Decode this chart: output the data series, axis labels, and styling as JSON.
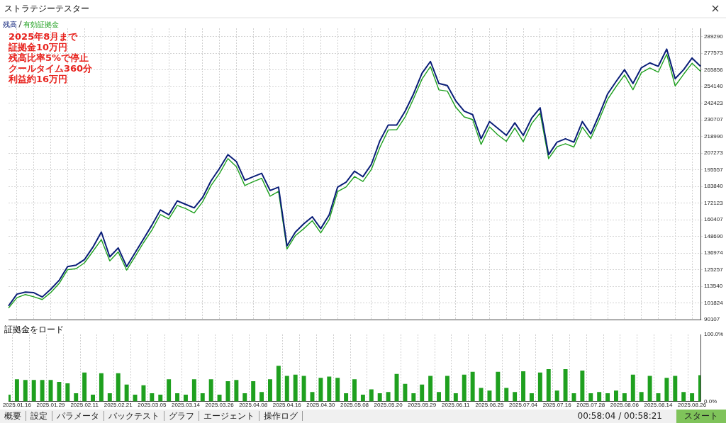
{
  "chart_data": [
    {
      "type": "line",
      "annotations": [
        "2025年8月まで",
        "証拠金10万円",
        "残高比率5%で停止",
        "クールタイム360分",
        "利益約16万円"
      ],
      "categories": [
        null,
        "2025.01.16",
        null,
        null,
        null,
        "2025.01.29",
        null,
        null,
        null,
        "2025.02.11",
        null,
        null,
        null,
        "2025.02.21",
        null,
        null,
        null,
        "2025.03.05",
        null,
        null,
        null,
        "2025.03.14",
        null,
        null,
        null,
        "2025.03.26",
        null,
        null,
        null,
        "2025.04.08",
        null,
        null,
        null,
        "2025.04.16",
        null,
        null,
        null,
        "2025.04.30",
        null,
        null,
        null,
        "2025.05.08",
        null,
        null,
        null,
        "2025.05.20",
        null,
        null,
        null,
        "2025.05.29",
        null,
        null,
        null,
        "2025.06.11",
        null,
        null,
        null,
        "2025.06.25",
        null,
        null,
        null,
        "2025.07.04",
        null,
        null,
        null,
        "2025.07.16",
        null,
        null,
        null,
        "2025.07.28",
        null,
        null,
        null,
        "2025.08.06",
        null,
        null,
        null,
        "2025.08.14",
        null,
        null,
        null,
        "2025.08.26",
        null
      ],
      "series": [
        {
          "name": "残高",
          "color": "#0a1e78",
          "values": [
            99800,
            108100,
            109500,
            109100,
            106100,
            111500,
            117800,
            127500,
            128500,
            132400,
            141100,
            151800,
            134300,
            140600,
            127500,
            137200,
            146900,
            156700,
            167300,
            163900,
            173700,
            171200,
            168800,
            176100,
            187800,
            196500,
            206200,
            201400,
            188200,
            190700,
            193100,
            181000,
            183400,
            142100,
            151800,
            157600,
            162500,
            154200,
            163900,
            183400,
            186800,
            194600,
            190700,
            199400,
            215900,
            227100,
            227100,
            236800,
            249000,
            263500,
            271800,
            256300,
            254800,
            244100,
            236800,
            234400,
            217400,
            229500,
            224700,
            219800,
            228600,
            219800,
            232000,
            239200,
            206200,
            215000,
            217400,
            215000,
            229500,
            220800,
            234400,
            249000,
            257700,
            266000,
            256300,
            267400,
            270800,
            268400,
            280500,
            259700,
            266000,
            274200,
            268400
          ]
        },
        {
          "name": "有効証拠金",
          "color": "#1fa01f",
          "values": [
            98300,
            105600,
            107800,
            106200,
            104300,
            109200,
            115600,
            125300,
            126000,
            130100,
            138200,
            146500,
            131500,
            137800,
            125000,
            134500,
            144300,
            153200,
            164100,
            161000,
            170500,
            168300,
            165200,
            173000,
            184500,
            193000,
            203500,
            197800,
            184500,
            187200,
            189600,
            177000,
            180400,
            139900,
            149300,
            154200,
            159700,
            151200,
            160500,
            180300,
            183500,
            190800,
            187400,
            195800,
            211200,
            223600,
            223800,
            232700,
            245600,
            259400,
            268200,
            251800,
            250900,
            239600,
            232800,
            230900,
            213400,
            225800,
            220100,
            215600,
            225000,
            215300,
            228100,
            235500,
            203400,
            211800,
            213900,
            211600,
            225600,
            217600,
            230900,
            245200,
            254100,
            262300,
            251900,
            263900,
            267200,
            264300,
            276900,
            254600,
            262800,
            270500,
            264900
          ]
        }
      ],
      "ylim": [
        90107,
        295100
      ],
      "yticks": [
        289290,
        277573,
        265856,
        254140,
        242423,
        230707,
        218990,
        207273,
        195557,
        183840,
        172123,
        160407,
        148690,
        136974,
        125257,
        113540,
        101824,
        90107
      ],
      "grid": true,
      "legend": "top left",
      "tick_labels": "y"
    },
    {
      "type": "bar",
      "title": "証拠金をロード",
      "categories": [
        null,
        "2025.01.16",
        null,
        null,
        null,
        "2025.01.29",
        null,
        null,
        null,
        "2025.02.11",
        null,
        null,
        null,
        "2025.02.21",
        null,
        null,
        null,
        "2025.03.05",
        null,
        null,
        null,
        "2025.03.14",
        null,
        null,
        null,
        "2025.03.26",
        null,
        null,
        null,
        "2025.04.08",
        null,
        null,
        null,
        "2025.04.16",
        null,
        null,
        null,
        "2025.04.30",
        null,
        null,
        null,
        "2025.05.08",
        null,
        null,
        null,
        "2025.05.20",
        null,
        null,
        null,
        "2025.05.29",
        null,
        null,
        null,
        "2025.06.11",
        null,
        null,
        null,
        "2025.06.25",
        null,
        null,
        null,
        "2025.07.04",
        null,
        null,
        null,
        "2025.07.16",
        null,
        null,
        null,
        "2025.07.28",
        null,
        null,
        null,
        "2025.08.06",
        null,
        null,
        null,
        "2025.08.14",
        null,
        null,
        null,
        "2025.08.26",
        null
      ],
      "values": [
        10,
        33,
        32,
        32,
        32,
        32,
        29,
        27,
        12,
        43,
        10,
        42,
        12,
        42,
        25,
        10,
        24,
        12,
        10,
        33,
        12,
        10,
        33,
        12,
        33,
        10,
        30,
        32,
        12,
        30,
        14,
        33,
        53,
        38,
        40,
        38,
        14,
        35,
        37,
        35,
        12,
        33,
        10,
        18,
        12,
        14,
        41,
        26,
        12,
        25,
        38,
        14,
        38,
        12,
        40,
        44,
        20,
        16,
        44,
        20,
        14,
        45,
        12,
        43,
        48,
        16,
        48,
        12,
        46,
        12,
        14,
        12,
        16,
        12,
        40,
        14,
        38,
        12,
        35,
        38,
        14,
        12,
        39
      ],
      "color": "#1fa01f",
      "ylim": [
        0,
        100
      ],
      "yticks": [
        {
          "value": 100,
          "label": "100.0%"
        },
        {
          "value": 0,
          "label": "0.0%"
        }
      ],
      "grid": "x"
    },
    {
      "type": "other",
      "title": "ストラテジーテスター",
      "annotations": [
        "概要",
        "設定",
        "パラメータ",
        "バックテスト",
        "グラフ",
        "エージェント",
        "操作ログ",
        "00:58:04 / 00:58:21",
        "スタート"
      ]
    }
  ]
}
